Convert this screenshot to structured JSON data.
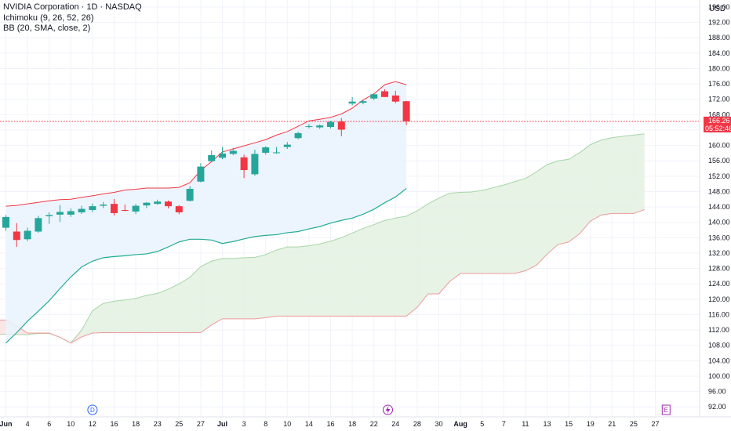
{
  "legend": {
    "title": "NVIDIA Corporation · 1D · NASDAQ",
    "ichimoku": "Ichimoku (9, 26, 52, 26)",
    "bb": "BB (20, SMA, close, 2)"
  },
  "axis": {
    "unit": "USD",
    "current_price": "166.26",
    "countdown": "05:52:46"
  },
  "markers": {
    "dividend": "D",
    "earnings": "E"
  },
  "colors": {
    "up": "#26a69a",
    "down": "#f23645",
    "bb_upper": "#f23645",
    "bb_lower": "#22ab94",
    "bb_fill": "#e9f3fd",
    "cloud_bull": "#e4f2e2",
    "cloud_bear": "#fbe3e3",
    "span_a": "#a5d6a7",
    "span_b": "#ef9a9a",
    "price_line": "#f23645",
    "grid": "#f0f3fa"
  },
  "chart_data": {
    "type": "candlestick",
    "title": "NVIDIA Corporation · 1D · NASDAQ",
    "indicators": [
      "Ichimoku (9, 26, 52, 26)",
      "BB (20, SMA, close, 2)"
    ],
    "ylim": [
      90,
      196
    ],
    "y_ticks": [
      92,
      96,
      100,
      104,
      108,
      112,
      116,
      120,
      124,
      128,
      132,
      136,
      140,
      144,
      148,
      152,
      156,
      160,
      164,
      168,
      172,
      176,
      180,
      184,
      188,
      192,
      196
    ],
    "x_ticks": [
      {
        "i": 0,
        "label": "Jun",
        "bold": true
      },
      {
        "i": 2,
        "label": "4"
      },
      {
        "i": 4,
        "label": "6"
      },
      {
        "i": 6,
        "label": "10"
      },
      {
        "i": 8,
        "label": "12"
      },
      {
        "i": 10,
        "label": "16"
      },
      {
        "i": 12,
        "label": "18"
      },
      {
        "i": 14,
        "label": "23"
      },
      {
        "i": 16,
        "label": "25"
      },
      {
        "i": 18,
        "label": "27"
      },
      {
        "i": 20,
        "label": "Jul",
        "bold": true
      },
      {
        "i": 22,
        "label": "3"
      },
      {
        "i": 24,
        "label": "8"
      },
      {
        "i": 26,
        "label": "10"
      },
      {
        "i": 28,
        "label": "14"
      },
      {
        "i": 30,
        "label": "16"
      },
      {
        "i": 32,
        "label": "18"
      },
      {
        "i": 34,
        "label": "22"
      },
      {
        "i": 36,
        "label": "24"
      },
      {
        "i": 38,
        "label": "28"
      },
      {
        "i": 40,
        "label": "30"
      },
      {
        "i": 42,
        "label": "Aug",
        "bold": true
      },
      {
        "i": 44,
        "label": "5"
      },
      {
        "i": 46,
        "label": "7"
      },
      {
        "i": 48,
        "label": "11"
      },
      {
        "i": 50,
        "label": "13"
      },
      {
        "i": 52,
        "label": "15"
      },
      {
        "i": 54,
        "label": "19"
      },
      {
        "i": 56,
        "label": "21"
      },
      {
        "i": 58,
        "label": "25"
      },
      {
        "i": 60,
        "label": "27"
      }
    ],
    "candles": [
      {
        "o": 138.6,
        "h": 141.9,
        "l": 137.8,
        "c": 141.4
      },
      {
        "o": 137.6,
        "h": 139.8,
        "l": 133.6,
        "c": 135.4
      },
      {
        "o": 135.6,
        "h": 138.6,
        "l": 135.1,
        "c": 137.8
      },
      {
        "o": 137.6,
        "h": 141.7,
        "l": 137.3,
        "c": 141.1
      },
      {
        "o": 141.6,
        "h": 142.6,
        "l": 139.6,
        "c": 141.9
      },
      {
        "o": 142.0,
        "h": 144.5,
        "l": 140.1,
        "c": 142.7
      },
      {
        "o": 142.0,
        "h": 143.6,
        "l": 141.4,
        "c": 142.9
      },
      {
        "o": 142.6,
        "h": 144.3,
        "l": 142.2,
        "c": 143.5
      },
      {
        "o": 143.2,
        "h": 144.9,
        "l": 142.6,
        "c": 144.2
      },
      {
        "o": 144.3,
        "h": 145.3,
        "l": 143.7,
        "c": 144.6
      },
      {
        "o": 144.8,
        "h": 146.1,
        "l": 141.8,
        "c": 142.4
      },
      {
        "o": 143.2,
        "h": 144.6,
        "l": 142.9,
        "c": 143.0
      },
      {
        "o": 142.8,
        "h": 144.8,
        "l": 142.1,
        "c": 144.3
      },
      {
        "o": 144.4,
        "h": 145.3,
        "l": 143.7,
        "c": 145.1
      },
      {
        "o": 144.8,
        "h": 145.9,
        "l": 144.6,
        "c": 145.4
      },
      {
        "o": 145.4,
        "h": 145.7,
        "l": 143.6,
        "c": 144.2
      },
      {
        "o": 144.2,
        "h": 144.5,
        "l": 142.1,
        "c": 142.6
      },
      {
        "o": 145.6,
        "h": 149.4,
        "l": 145.4,
        "c": 148.7
      },
      {
        "o": 150.6,
        "h": 155.4,
        "l": 150.4,
        "c": 154.5
      },
      {
        "o": 155.9,
        "h": 158.7,
        "l": 155.6,
        "c": 157.5
      },
      {
        "o": 156.8,
        "h": 159.6,
        "l": 156.4,
        "c": 157.9
      },
      {
        "o": 157.8,
        "h": 159.3,
        "l": 157.5,
        "c": 158.6
      },
      {
        "o": 156.9,
        "h": 157.6,
        "l": 151.5,
        "c": 153.6
      },
      {
        "o": 152.5,
        "h": 158.9,
        "l": 152.1,
        "c": 157.8
      },
      {
        "o": 158.1,
        "h": 159.8,
        "l": 157.6,
        "c": 159.5
      },
      {
        "o": 158.0,
        "h": 159.6,
        "l": 157.8,
        "c": 158.2
      },
      {
        "o": 159.6,
        "h": 160.9,
        "l": 159.1,
        "c": 160.2
      },
      {
        "o": 161.9,
        "h": 163.6,
        "l": 161.6,
        "c": 163.2
      },
      {
        "o": 164.8,
        "h": 165.6,
        "l": 164.4,
        "c": 165.0
      },
      {
        "o": 164.7,
        "h": 165.5,
        "l": 164.3,
        "c": 165.2
      },
      {
        "o": 164.8,
        "h": 166.4,
        "l": 164.4,
        "c": 166.1
      },
      {
        "o": 166.2,
        "h": 167.1,
        "l": 162.4,
        "c": 164.1
      },
      {
        "o": 170.9,
        "h": 172.6,
        "l": 170.4,
        "c": 171.4
      },
      {
        "o": 171.1,
        "h": 171.9,
        "l": 170.7,
        "c": 171.5
      },
      {
        "o": 172.2,
        "h": 173.6,
        "l": 171.8,
        "c": 173.3
      },
      {
        "o": 174.1,
        "h": 174.6,
        "l": 172.6,
        "c": 172.6
      },
      {
        "o": 173.0,
        "h": 174.2,
        "l": 171.0,
        "c": 171.4
      },
      {
        "o": 171.5,
        "h": 171.6,
        "l": 165.3,
        "c": 166.3
      }
    ],
    "bb_upper": [
      144.2,
      144.4,
      144.8,
      145.2,
      145.6,
      145.9,
      146.0,
      146.5,
      146.9,
      147.4,
      147.8,
      148.4,
      148.6,
      148.9,
      148.9,
      148.9,
      149.1,
      150.3,
      153.5,
      155.8,
      158.3,
      159.1,
      159.9,
      160.7,
      161.5,
      162.7,
      163.6,
      165.0,
      166.4,
      166.8,
      167.3,
      168.2,
      169.7,
      171.8,
      173.4,
      175.8,
      176.6,
      175.8
    ],
    "bb_lower": [
      108.6,
      111.3,
      114.3,
      116.9,
      119.6,
      122.8,
      125.8,
      128.4,
      129.9,
      130.8,
      131.1,
      131.3,
      131.6,
      131.8,
      132.4,
      133.6,
      134.9,
      135.6,
      135.6,
      135.4,
      134.5,
      135.0,
      135.7,
      136.3,
      136.6,
      136.8,
      137.3,
      137.6,
      138.3,
      138.9,
      139.8,
      140.5,
      141.1,
      142.1,
      143.4,
      145.1,
      146.6,
      148.8
    ],
    "span_a": [
      115.3,
      114.9,
      113.9,
      112.5,
      111.3,
      110.6,
      110.2,
      110.4,
      110.8,
      110.9,
      110.8,
      110.8,
      111.1,
      111.1,
      110.1,
      108.6,
      112.0,
      117.0,
      118.9,
      119.5,
      119.8,
      120.2,
      121.0,
      121.5,
      122.6,
      124.0,
      125.7,
      128.5,
      129.9,
      130.6,
      130.6,
      130.8,
      130.9,
      131.6,
      132.8,
      133.6,
      133.6,
      133.9,
      134.4,
      135.1,
      136.0,
      137.2,
      138.4,
      139.4,
      140.5,
      141.1,
      141.6,
      143.0,
      144.8,
      146.3,
      147.6,
      147.8,
      147.9,
      148.3,
      149.0,
      149.7,
      150.6,
      151.4,
      153.1,
      155.0,
      156.0,
      156.4,
      158.1,
      160.2,
      161.4,
      162.0,
      162.4,
      162.7,
      163.0
    ],
    "span_b": [
      115.3,
      115.3,
      115.3,
      115.3,
      114.6,
      114.6,
      114.6,
      114.6,
      114.6,
      114.6,
      113.0,
      111.2,
      111.2,
      111.2,
      110.1,
      108.6,
      110.2,
      111.2,
      111.3,
      111.3,
      111.3,
      111.3,
      111.3,
      111.3,
      111.3,
      111.3,
      111.3,
      111.3,
      113.3,
      114.9,
      114.9,
      114.9,
      114.9,
      115.2,
      115.6,
      115.6,
      115.6,
      115.6,
      115.6,
      115.6,
      115.6,
      115.6,
      115.6,
      115.6,
      115.6,
      115.6,
      115.6,
      117.9,
      121.4,
      121.4,
      124.6,
      126.7,
      126.7,
      126.7,
      126.7,
      126.7,
      126.7,
      127.4,
      128.8,
      131.7,
      134.2,
      134.9,
      137.0,
      140.3,
      141.9,
      142.3,
      142.3,
      142.3,
      143.3
    ],
    "span_offset": -9,
    "current_price": 166.26,
    "dividend_index": 8,
    "earnings_index": 61
  }
}
